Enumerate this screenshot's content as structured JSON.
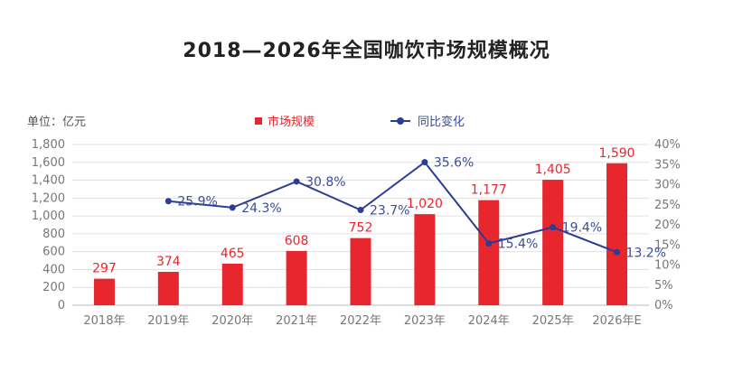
{
  "title": "2018—2026年全国咖饮市场规模概况",
  "unit_label": "单位：亿元",
  "colors": {
    "bar": "#e8262e",
    "line": "#2b3c94",
    "line_label": "#3a4c9c",
    "axis": "#777777",
    "grid": "#e0e0e0"
  },
  "chart_data": {
    "type": "bar",
    "title": "2018—2026年全国咖饮市场规模概况",
    "categories": [
      "2018年",
      "2019年",
      "2020年",
      "2021年",
      "2022年",
      "2023年",
      "2024年",
      "2025年",
      "2026年E"
    ],
    "series": [
      {
        "name": "市场规模",
        "type": "bar",
        "axis": "left",
        "values": [
          297,
          374,
          465,
          608,
          752,
          1020,
          1177,
          1405,
          1590
        ],
        "labels": [
          "297",
          "374",
          "465",
          "608",
          "752",
          "1,020",
          "1,177",
          "1,405",
          "1,590"
        ]
      },
      {
        "name": "同比变化",
        "type": "line",
        "axis": "right",
        "values": [
          null,
          25.9,
          24.3,
          30.8,
          23.7,
          35.6,
          15.4,
          19.4,
          13.2
        ],
        "labels": [
          "",
          "25.9%",
          "24.3%",
          "30.8%",
          "23.7%",
          "35.6%",
          "15.4%",
          "19.4%",
          "13.2%"
        ]
      }
    ],
    "ylim_left": [
      0,
      1800
    ],
    "yticks_left": [
      0,
      200,
      400,
      600,
      800,
      1000,
      1200,
      1400,
      1600,
      1800
    ],
    "ytick_labels_left": [
      "0",
      "200",
      "400",
      "600",
      "800",
      "1,000",
      "1,200",
      "1,400",
      "1,600",
      "1,800"
    ],
    "ylim_right": [
      0,
      40
    ],
    "yticks_right": [
      0,
      5,
      10,
      15,
      20,
      25,
      30,
      35,
      40
    ],
    "ytick_labels_right": [
      "0%",
      "5%",
      "10%",
      "15%",
      "20%",
      "25%",
      "30%",
      "35%",
      "40%"
    ],
    "legend_position": "top",
    "grid": true
  }
}
